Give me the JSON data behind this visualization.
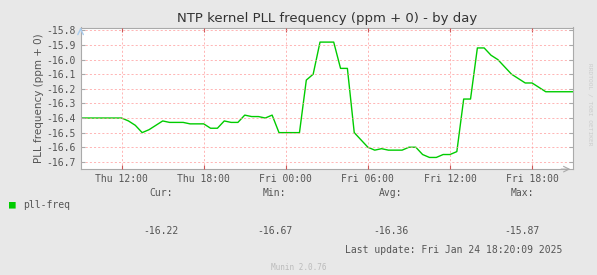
{
  "title": "NTP kernel PLL frequency (ppm + 0) - by day",
  "ylabel": "PLL frequency (ppm + 0)",
  "bg_color": "#e8e8e8",
  "plot_bg_color": "#ffffff",
  "line_color": "#00cc00",
  "grid_color": "#ff9999",
  "axis_color": "#aaaaaa",
  "title_color": "#333333",
  "label_color": "#555555",
  "tick_color": "#555555",
  "ylim": [
    -16.75,
    -15.78
  ],
  "yticks": [
    -16.7,
    -16.6,
    -16.5,
    -16.4,
    -16.3,
    -16.2,
    -16.1,
    -16.0,
    -15.9,
    -15.8
  ],
  "xtick_labels": [
    "Thu 12:00",
    "Thu 18:00",
    "Fri 00:00",
    "Fri 06:00",
    "Fri 12:00",
    "Fri 18:00"
  ],
  "xtick_positions": [
    0.0833,
    0.25,
    0.4167,
    0.5833,
    0.75,
    0.9167
  ],
  "legend_label": "pll-freq",
  "legend_color": "#00cc00",
  "cur_label": "Cur:",
  "cur": "-16.22",
  "min_label": "Min:",
  "min_val": "-16.67",
  "avg_label": "Avg:",
  "avg": "-16.36",
  "max_label": "Max:",
  "max_val": "-15.87",
  "last_update": "Last update: Fri Jan 24 18:20:09 2025",
  "watermark": "Munin 2.0.76",
  "rrdtool_text": "RRDTOOL / TOBI OETIKER",
  "x_data": [
    0.0,
    0.0139,
    0.0278,
    0.0417,
    0.0556,
    0.0694,
    0.0833,
    0.0972,
    0.1111,
    0.125,
    0.1389,
    0.1528,
    0.1667,
    0.1806,
    0.1944,
    0.2083,
    0.2222,
    0.2361,
    0.25,
    0.2639,
    0.2778,
    0.2917,
    0.3056,
    0.3194,
    0.3333,
    0.3472,
    0.3611,
    0.375,
    0.3889,
    0.4028,
    0.4167,
    0.4306,
    0.4444,
    0.4583,
    0.4722,
    0.4861,
    0.5,
    0.5139,
    0.5278,
    0.5417,
    0.5556,
    0.5694,
    0.5833,
    0.5972,
    0.6111,
    0.625,
    0.6389,
    0.6528,
    0.6667,
    0.6806,
    0.6944,
    0.7083,
    0.7222,
    0.7361,
    0.75,
    0.7639,
    0.7778,
    0.7917,
    0.8056,
    0.8194,
    0.8333,
    0.8472,
    0.8611,
    0.875,
    0.8889,
    0.9028,
    0.9167,
    0.9306,
    0.9444,
    0.9583,
    0.9722,
    0.9861,
    1.0
  ],
  "y_data": [
    -16.4,
    -16.4,
    -16.4,
    -16.4,
    -16.4,
    -16.4,
    -16.4,
    -16.42,
    -16.45,
    -16.5,
    -16.48,
    -16.45,
    -16.42,
    -16.43,
    -16.43,
    -16.43,
    -16.44,
    -16.44,
    -16.44,
    -16.47,
    -16.47,
    -16.42,
    -16.43,
    -16.43,
    -16.38,
    -16.39,
    -16.39,
    -16.4,
    -16.38,
    -16.5,
    -16.5,
    -16.5,
    -16.5,
    -16.14,
    -16.1,
    -15.88,
    -15.88,
    -15.88,
    -16.06,
    -16.06,
    -16.5,
    -16.55,
    -16.6,
    -16.62,
    -16.61,
    -16.62,
    -16.62,
    -16.62,
    -16.6,
    -16.6,
    -16.65,
    -16.67,
    -16.67,
    -16.65,
    -16.65,
    -16.63,
    -16.27,
    -16.27,
    -15.92,
    -15.92,
    -15.97,
    -16.0,
    -16.05,
    -16.1,
    -16.13,
    -16.16,
    -16.16,
    -16.19,
    -16.22,
    -16.22,
    -16.22,
    -16.22,
    -16.22
  ]
}
